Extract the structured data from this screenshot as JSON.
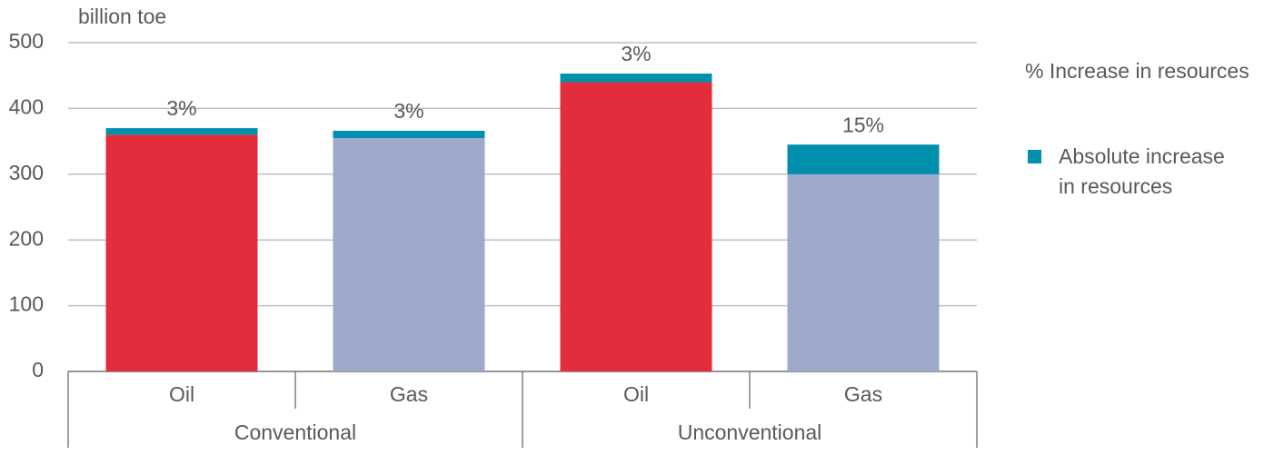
{
  "chart_data": {
    "type": "stacked_bar",
    "y_label": "billion toe",
    "groups": [
      {
        "name": "Conventional",
        "categories": [
          "Oil",
          "Gas"
        ]
      },
      {
        "name": "Unconventional",
        "categories": [
          "Oil",
          "Gas"
        ]
      }
    ],
    "series": [
      {
        "colors": [
          "#e32d3a",
          "#9da8cb",
          "#e32d3a",
          "#9da8cb"
        ],
        "values": [
          360,
          355,
          440,
          300
        ]
      },
      {
        "name": "Absolute increase in resources",
        "color": "#008fad",
        "values": [
          10,
          11,
          13,
          45
        ]
      }
    ],
    "data_labels": [
      "3%",
      "3%",
      "3%",
      "15%"
    ],
    "data_labels_legend": "%  Increase in resources",
    "ylim": [
      0,
      500
    ],
    "yticks": [
      0,
      100,
      200,
      300,
      400,
      500
    ],
    "grid": true
  }
}
